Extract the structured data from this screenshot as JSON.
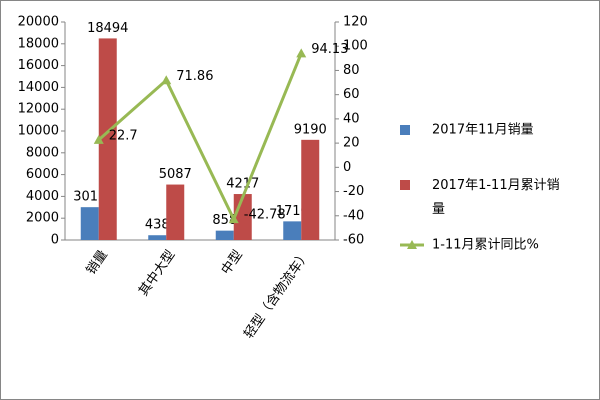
{
  "chart_data": {
    "type": "bar",
    "categories": [
      "销量",
      "其中大型",
      "中型",
      "轻型（含物流车）"
    ],
    "series": [
      {
        "name": "2017年11月销量",
        "color": "#4a7ebb",
        "values": [
          3012,
          438,
          858,
          1710
        ]
      },
      {
        "name": "2017年1-11月累计销量",
        "color": "#be4b48",
        "values": [
          18494,
          5087,
          4217,
          9190
        ]
      },
      {
        "name": "1-11月累计同比%",
        "color": "#98b954",
        "type": "line",
        "axis": "y2",
        "values": [
          22.7,
          71.86,
          -42.78,
          94.13
        ]
      }
    ],
    "ylim": [
      0,
      20000
    ],
    "yticks": [
      0,
      2000,
      4000,
      6000,
      8000,
      10000,
      12000,
      14000,
      16000,
      18000,
      20000
    ],
    "y2lim": [
      -60,
      120
    ],
    "y2ticks": [
      -60,
      -40,
      -20,
      0,
      20,
      40,
      60,
      80,
      100,
      120
    ],
    "legend": "right"
  }
}
